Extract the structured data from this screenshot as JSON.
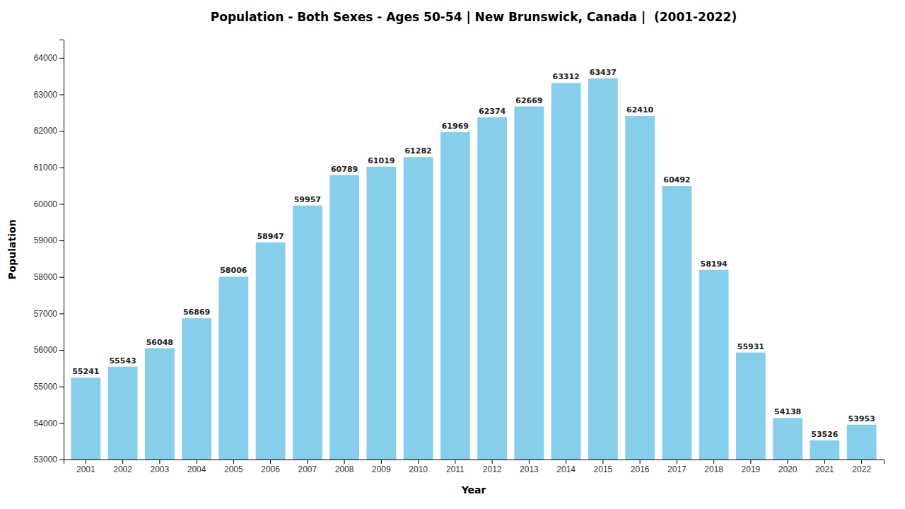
{
  "chart_data": {
    "type": "bar",
    "title": "Population - Both Sexes - Ages 50-54 | New Brunswick, Canada |  (2001-2022)",
    "x_label": "Year",
    "y_label": "Population",
    "categories": [
      "2001",
      "2002",
      "2003",
      "2004",
      "2005",
      "2006",
      "2007",
      "2008",
      "2009",
      "2010",
      "2011",
      "2012",
      "2013",
      "2014",
      "2015",
      "2016",
      "2017",
      "2018",
      "2019",
      "2020",
      "2021",
      "2022"
    ],
    "values": [
      55241,
      55543,
      56048,
      56869,
      58006,
      58947,
      59957,
      60789,
      61019,
      61282,
      61969,
      62374,
      62669,
      63312,
      63437,
      62410,
      60492,
      58194,
      55931,
      54138,
      53526,
      53953
    ],
    "color": "#87CEEB",
    "ylim": [
      53000,
      64500
    ],
    "yticks": [
      53000,
      54000,
      55000,
      56000,
      57000,
      58000,
      59000,
      60000,
      61000,
      62000,
      63000,
      64000
    ],
    "grid": false,
    "data_labels": true
  }
}
